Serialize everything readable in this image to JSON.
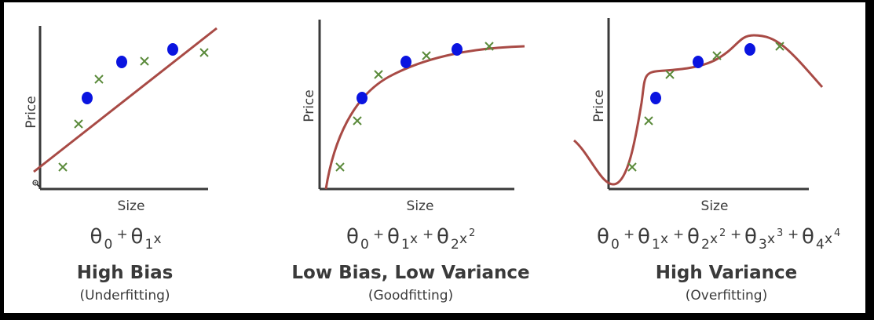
{
  "colors": {
    "axis": "#3a3a3a",
    "curve": "#a84a45",
    "cross": "#5a8a3a",
    "dot": "#0a14e0",
    "text": "#3a3a3a"
  },
  "panels": [
    {
      "id": "underfit",
      "ylabel": "Price",
      "xlabel": "Size",
      "title": "High Bias",
      "subtitle": "(Underfitting)",
      "equation": [
        {
          "t": "θ",
          "s": "0"
        },
        {
          "op": "+"
        },
        {
          "t": "θ",
          "s": "1"
        },
        {
          "v": "x"
        }
      ]
    },
    {
      "id": "goodfit",
      "ylabel": "Price",
      "xlabel": "Size",
      "title": "Low Bias, Low Variance",
      "subtitle": "(Goodfitting)",
      "equation": [
        {
          "t": "θ",
          "s": "0"
        },
        {
          "op": "+"
        },
        {
          "t": "θ",
          "s": "1"
        },
        {
          "v": "x"
        },
        {
          "op": "+"
        },
        {
          "t": "θ",
          "s": "2"
        },
        {
          "v": "x",
          "p": "2"
        }
      ]
    },
    {
      "id": "overfit",
      "ylabel": "Price",
      "xlabel": "Size",
      "title": "High Variance",
      "subtitle": "(Overfitting)",
      "equation": [
        {
          "t": "θ",
          "s": "0"
        },
        {
          "op": "+"
        },
        {
          "t": "θ",
          "s": "1"
        },
        {
          "v": "x"
        },
        {
          "op": "+"
        },
        {
          "t": "θ",
          "s": "2"
        },
        {
          "v": "x",
          "p": "2"
        },
        {
          "op": "+"
        },
        {
          "t": "θ",
          "s": "3"
        },
        {
          "v": "x",
          "p": "3"
        },
        {
          "op": "+"
        },
        {
          "t": "θ",
          "s": "4"
        },
        {
          "v": "x",
          "p": "4"
        }
      ]
    }
  ],
  "cursor_icon": "magnifier-cursor-icon"
}
